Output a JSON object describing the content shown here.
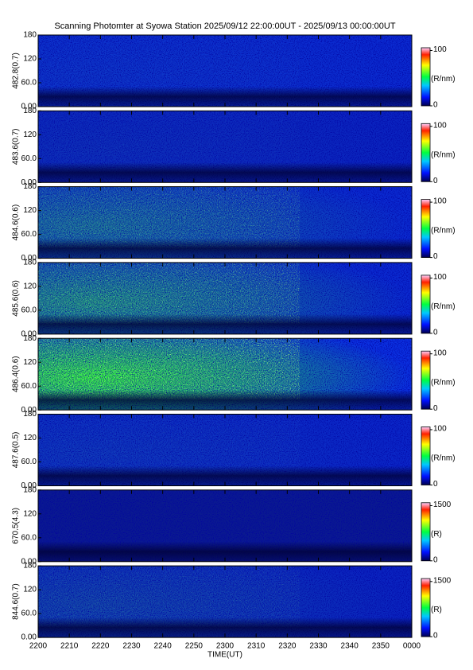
{
  "chart_data": [
    {
      "type": "heatmap",
      "title": "Scanning Photomter at Syowa Station 2025/09/12 22:00:00UT - 2025/09/13 00:00:00UT",
      "ylabel": "482.8(0.7)",
      "ylim": [
        0,
        180
      ],
      "yticks": [
        {
          "value": 0,
          "label": "0.00"
        },
        {
          "value": 60,
          "label": "60.0"
        },
        120,
        180
      ],
      "clim": [
        0,
        105
      ],
      "cticks": [
        0,
        100
      ],
      "clabel": "(R/nm)"
    },
    {
      "type": "heatmap",
      "ylabel": "483.6(0.7)",
      "ylim": [
        0,
        180
      ],
      "yticks": [
        {
          "value": 0,
          "label": "0.00"
        },
        {
          "value": 60,
          "label": "60.0"
        },
        120,
        180
      ],
      "clim": [
        0,
        105
      ],
      "cticks": [
        0,
        100
      ],
      "clabel": "(R/nm)"
    },
    {
      "type": "heatmap",
      "ylabel": "484.6(0.6)",
      "ylim": [
        0,
        180
      ],
      "yticks": [
        {
          "value": 0,
          "label": "0.00"
        },
        {
          "value": 60,
          "label": "60.0"
        },
        120,
        180
      ],
      "clim": [
        0,
        105
      ],
      "cticks": [
        0,
        100
      ],
      "clabel": "(R/nm)"
    },
    {
      "type": "heatmap",
      "ylabel": "485.6(0.6)",
      "ylim": [
        0,
        180
      ],
      "yticks": [
        {
          "value": 0,
          "label": "0.00"
        },
        {
          "value": 60,
          "label": "60.0"
        },
        120,
        180
      ],
      "clim": [
        0,
        105
      ],
      "cticks": [
        0,
        100
      ],
      "clabel": "(R/nm)"
    },
    {
      "type": "heatmap",
      "ylabel": "486.4(0.6)",
      "ylim": [
        0,
        180
      ],
      "yticks": [
        {
          "value": 0,
          "label": "0.00"
        },
        {
          "value": 60,
          "label": "60.0"
        },
        120,
        180
      ],
      "clim": [
        0,
        105
      ],
      "cticks": [
        0,
        100
      ],
      "clabel": "(R/nm)"
    },
    {
      "type": "heatmap",
      "ylabel": "487.6(0.5)",
      "ylim": [
        0,
        180
      ],
      "yticks": [
        {
          "value": 0,
          "label": "0.00"
        },
        {
          "value": 60,
          "label": "60.0"
        },
        120,
        180
      ],
      "clim": [
        0,
        105
      ],
      "cticks": [
        0,
        100
      ],
      "clabel": "(R/nm)"
    },
    {
      "type": "heatmap",
      "ylabel": "670.5(4.3)",
      "ylim": [
        0,
        180
      ],
      "yticks": [
        {
          "value": 0,
          "label": "0.00"
        },
        {
          "value": 60,
          "label": "60.0"
        },
        120,
        180
      ],
      "clim": [
        0,
        1580
      ],
      "cticks": [
        0,
        1500
      ],
      "clabel": "(R)"
    },
    {
      "type": "heatmap",
      "ylabel": "844.6(0.7)",
      "ylim": [
        0,
        180
      ],
      "yticks": [
        {
          "value": 0,
          "label": "0.00"
        },
        {
          "value": 60,
          "label": "60.0"
        },
        120,
        180
      ],
      "clim": [
        0,
        1580
      ],
      "cticks": [
        0,
        1500
      ],
      "clabel": "(R)",
      "xlabel": "TIME(UT)",
      "xlim": [
        0,
        120
      ],
      "xticks": [
        {
          "value": 0,
          "label": "2200"
        },
        {
          "value": 10,
          "label": "2210"
        },
        {
          "value": 20,
          "label": "2220"
        },
        {
          "value": 30,
          "label": "2230"
        },
        {
          "value": 40,
          "label": "2240"
        },
        {
          "value": 50,
          "label": "2250"
        },
        {
          "value": 60,
          "label": "2300"
        },
        {
          "value": 70,
          "label": "2310"
        },
        {
          "value": 80,
          "label": "2320"
        },
        {
          "value": 90,
          "label": "2330"
        },
        {
          "value": 100,
          "label": "2340"
        },
        {
          "value": 110,
          "label": "2350"
        },
        {
          "value": 120,
          "label": "0000"
        }
      ]
    }
  ]
}
